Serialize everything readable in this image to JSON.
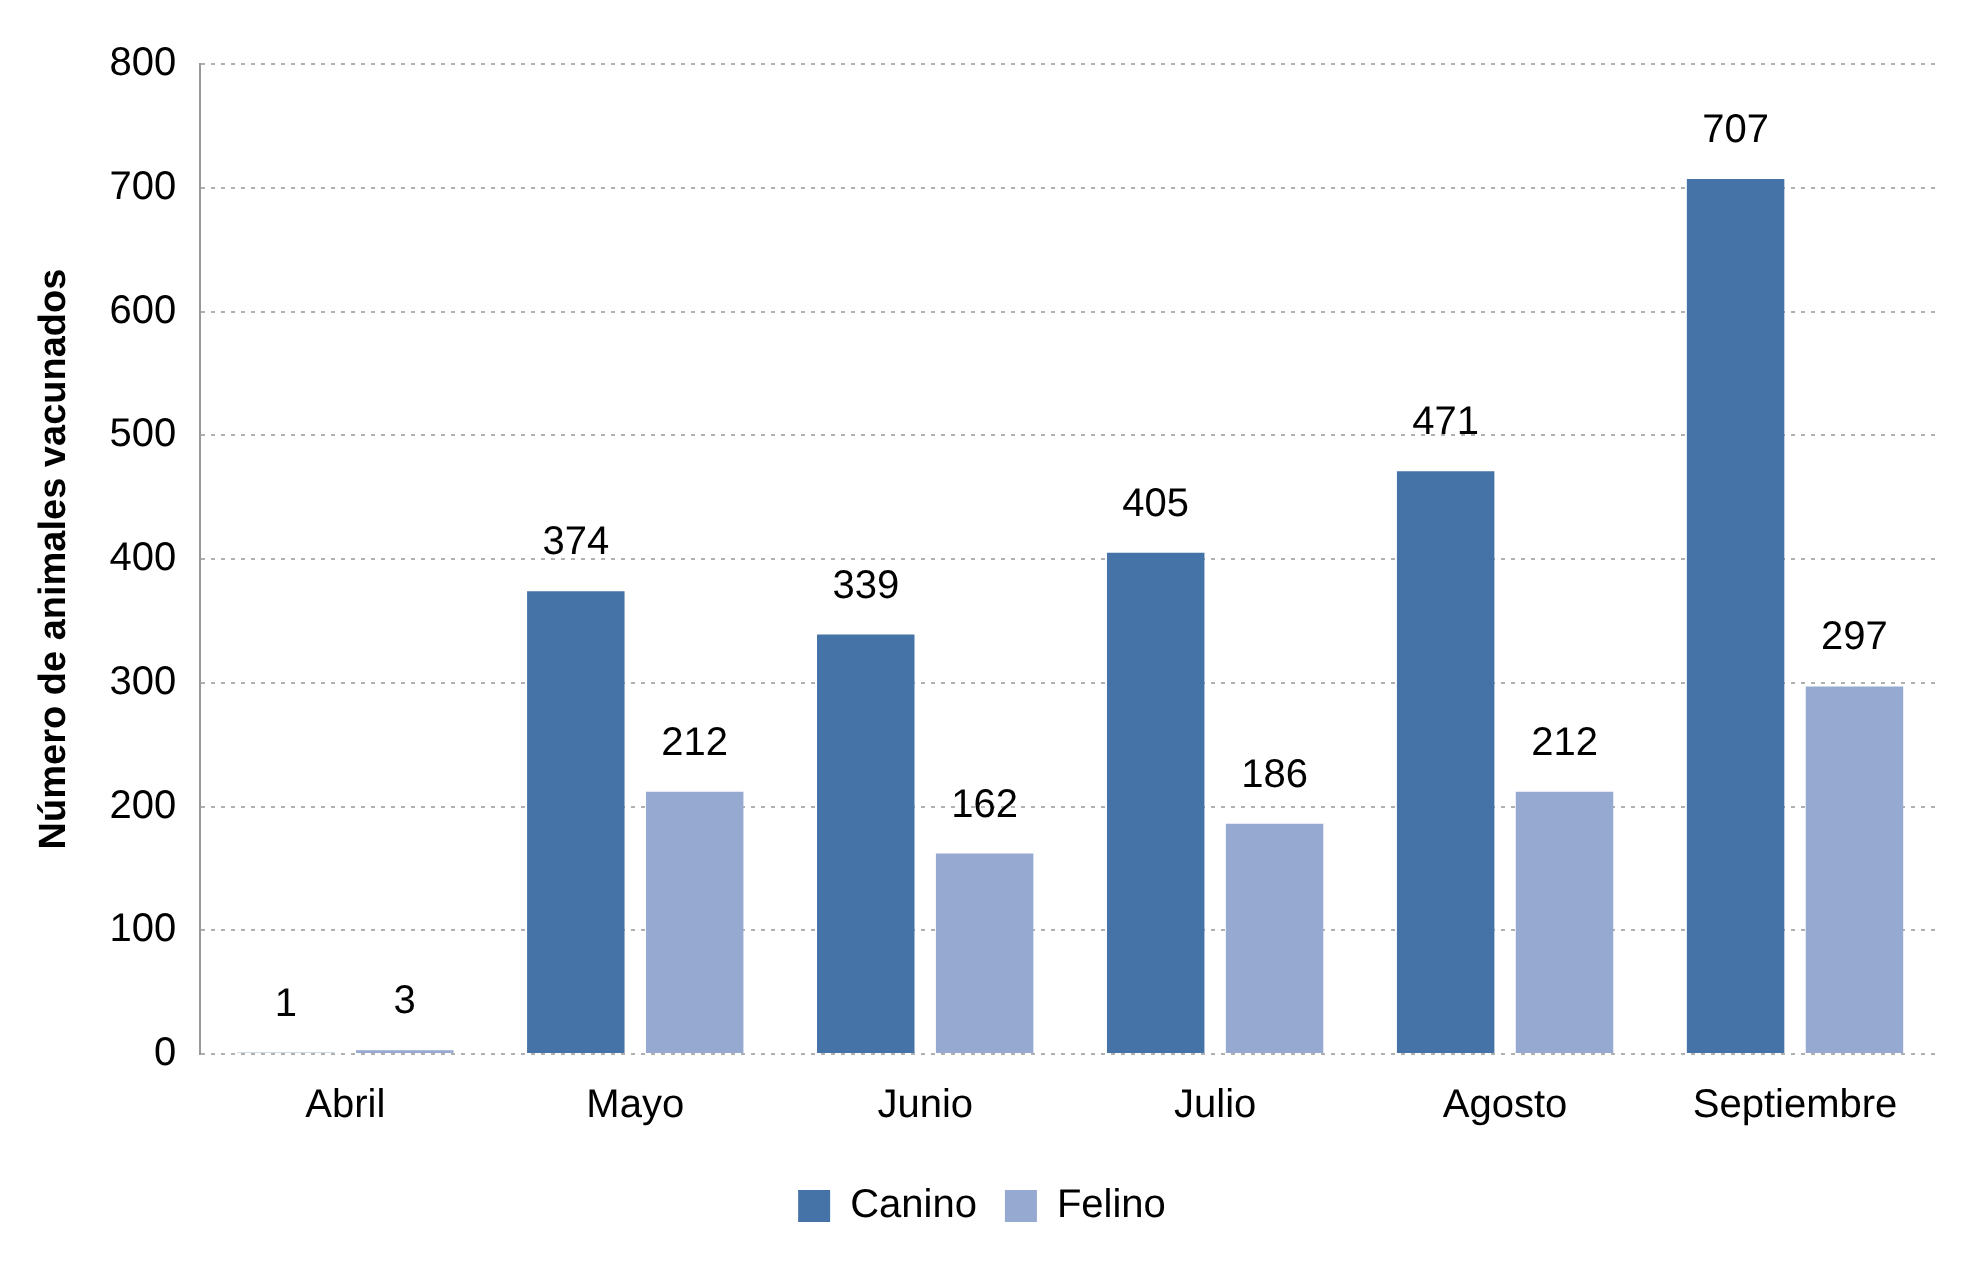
{
  "chart_data": {
    "type": "bar",
    "ylabel": "Número de animales vacunados",
    "categories": [
      "Abril",
      "Mayo",
      "Junio",
      "Julio",
      "Agosto",
      "Septiembre"
    ],
    "series": [
      {
        "name": "Canino",
        "color": "#4572a7",
        "values": [
          1,
          374,
          339,
          405,
          471,
          707
        ]
      },
      {
        "name": "Felino",
        "color": "#96a9d1",
        "values": [
          3,
          212,
          162,
          186,
          212,
          297
        ]
      }
    ],
    "ylim": [
      0,
      800
    ],
    "yticks": [
      0,
      100,
      200,
      300,
      400,
      500,
      600,
      700,
      800
    ],
    "grid": "y",
    "legend": "bottom",
    "data_labels": true
  }
}
